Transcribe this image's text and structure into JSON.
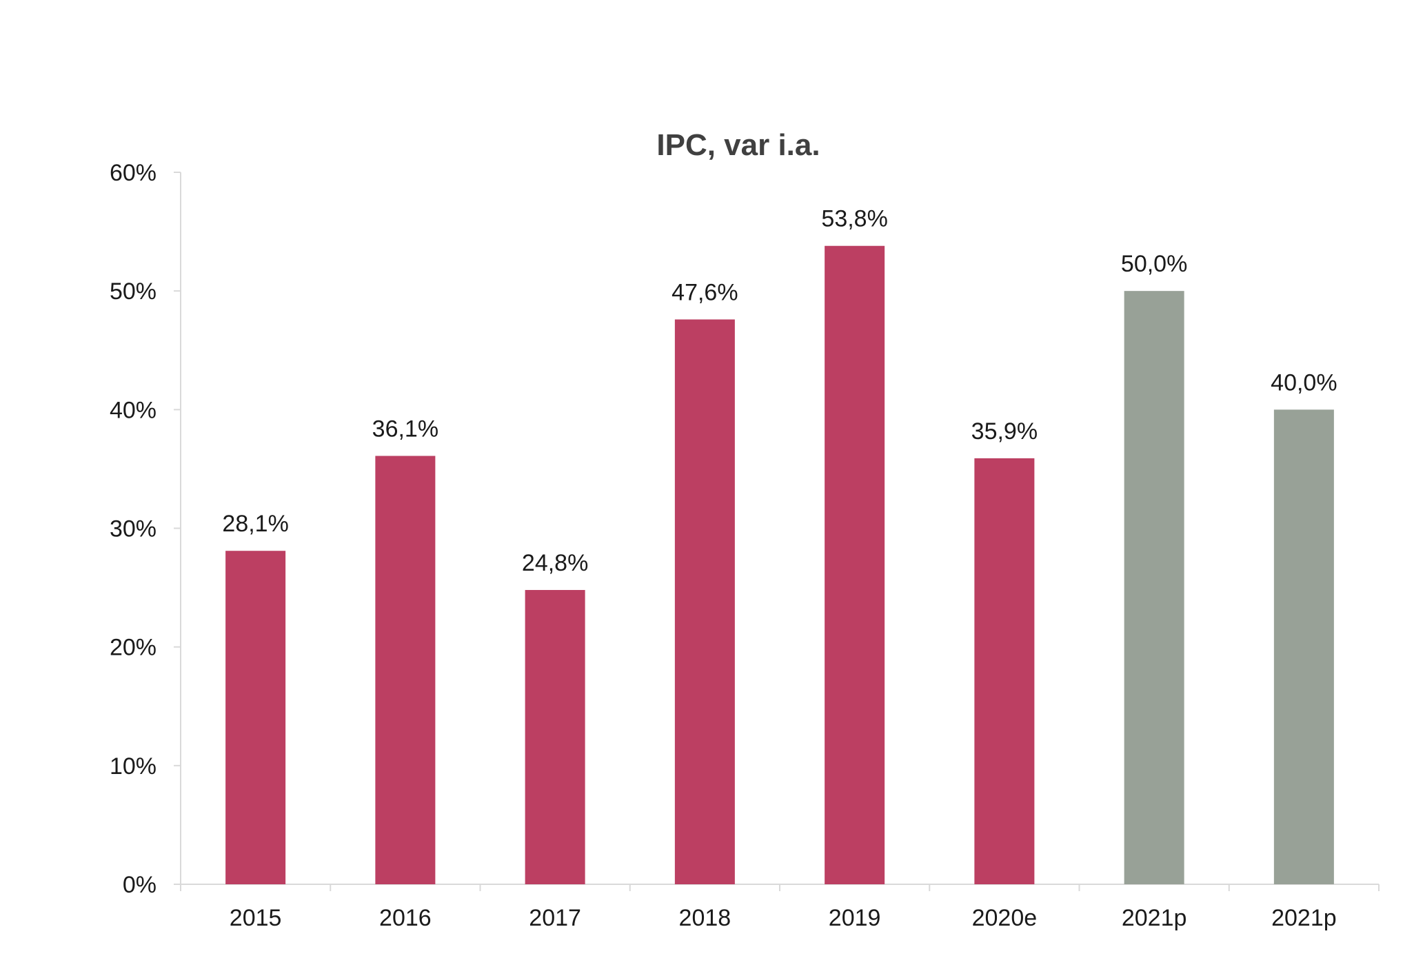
{
  "chart_data": {
    "type": "bar",
    "title": "IPC, var i.a.",
    "xlabel": "",
    "ylabel": "",
    "categories": [
      "2015",
      "2016",
      "2017",
      "2018",
      "2019",
      "2020e",
      "2021p",
      "2021p"
    ],
    "values": [
      28.1,
      36.1,
      24.8,
      47.6,
      53.8,
      35.9,
      50.0,
      40.0
    ],
    "data_labels": [
      "28,1%",
      "36,1%",
      "24,8%",
      "47,6%",
      "53,8%",
      "35,9%",
      "50,0%",
      "40,0%"
    ],
    "bar_colors": [
      "#bc3f62",
      "#bc3f62",
      "#bc3f62",
      "#bc3f62",
      "#bc3f62",
      "#bc3f62",
      "#98a197",
      "#98a197"
    ],
    "ylim": [
      0,
      60
    ],
    "yticks": [
      0,
      10,
      20,
      30,
      40,
      50,
      60
    ],
    "ytick_labels": [
      "0%",
      "10%",
      "20%",
      "30%",
      "40%",
      "50%",
      "60%"
    ],
    "grid": false,
    "legend": "none"
  }
}
